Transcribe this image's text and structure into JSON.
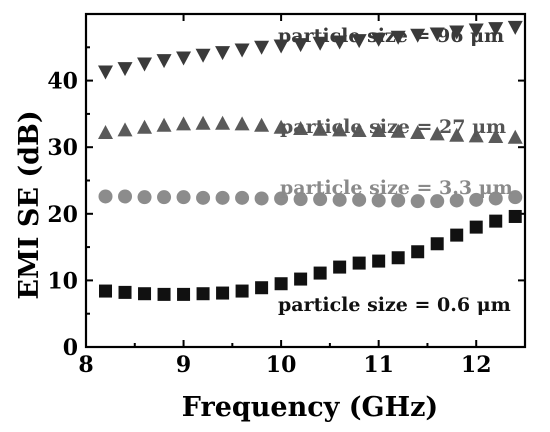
{
  "chart_data": {
    "type": "scatter",
    "xlabel": "Frequency (GHz)",
    "ylabel": "EMI SE (dB)",
    "xlim": [
      8,
      12.5
    ],
    "ylim": [
      0,
      50
    ],
    "xticks": [
      8,
      9,
      10,
      11,
      12
    ],
    "yticks": [
      0,
      10,
      20,
      30,
      40
    ],
    "grid": false,
    "x": [
      8.2,
      8.4,
      8.6,
      8.8,
      9.0,
      9.2,
      9.4,
      9.6,
      9.8,
      10.0,
      10.2,
      10.4,
      10.6,
      10.8,
      11.0,
      11.2,
      11.4,
      11.6,
      11.8,
      12.0,
      12.2,
      12.4
    ],
    "series": [
      {
        "name": "particle size = 96 μm",
        "marker": "triangle-down",
        "color": "#3a3a3a",
        "label_color": "#3a3a3a",
        "values": [
          41.3,
          41.8,
          42.5,
          43.0,
          43.4,
          43.8,
          44.2,
          44.6,
          45.0,
          45.2,
          45.4,
          45.6,
          45.8,
          46.0,
          46.2,
          46.5,
          46.8,
          47.0,
          47.3,
          47.6,
          47.8,
          48.0
        ]
      },
      {
        "name": "particle size = 27 μm",
        "marker": "triangle-up",
        "color": "#5a5a5a",
        "label_color": "#555555",
        "values": [
          32.2,
          32.6,
          33.0,
          33.3,
          33.5,
          33.6,
          33.6,
          33.5,
          33.3,
          33.0,
          32.8,
          32.7,
          32.6,
          32.5,
          32.5,
          32.4,
          32.2,
          32.0,
          31.8,
          31.7,
          31.6,
          31.5
        ]
      },
      {
        "name": "particle size = 3.3 μm",
        "marker": "circle",
        "color": "#8c8c8c",
        "label_color": "#8a8a8a",
        "values": [
          22.6,
          22.6,
          22.5,
          22.5,
          22.5,
          22.4,
          22.4,
          22.4,
          22.3,
          22.3,
          22.2,
          22.2,
          22.1,
          22.1,
          22.0,
          22.0,
          21.9,
          21.9,
          22.0,
          22.1,
          22.3,
          22.5
        ]
      },
      {
        "name": "particle size = 0.6 μm",
        "marker": "square",
        "color": "#111111",
        "label_color": "#111111",
        "values": [
          8.4,
          8.2,
          8.0,
          7.9,
          7.9,
          8.0,
          8.1,
          8.4,
          8.9,
          9.5,
          10.2,
          11.1,
          12.0,
          12.6,
          12.9,
          13.4,
          14.3,
          15.5,
          16.8,
          18.0,
          18.9,
          19.6
        ]
      }
    ]
  }
}
